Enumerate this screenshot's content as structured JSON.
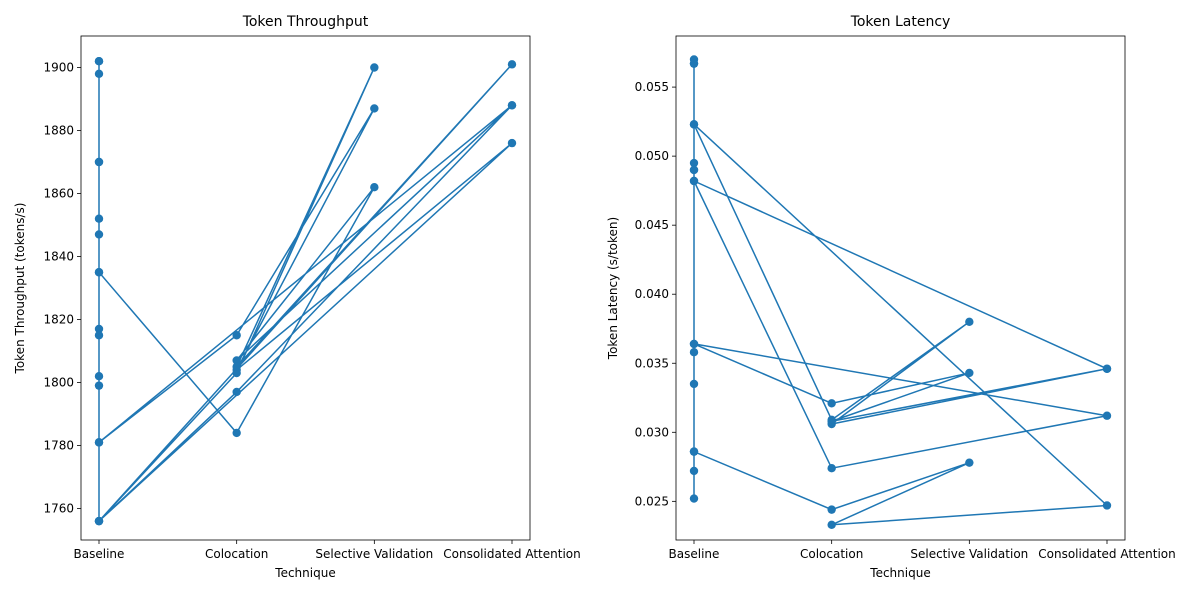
{
  "chart_data": [
    {
      "type": "line",
      "title": "Token Throughput",
      "xlabel": "Technique",
      "ylabel": "Token Throughput (tokens/s)",
      "categories": [
        "Baseline",
        "Colocation",
        "Selective Validation",
        "Consolidated Attention"
      ],
      "ylim": [
        1750,
        1910
      ],
      "yticks": [
        1760,
        1780,
        1800,
        1820,
        1840,
        1860,
        1880,
        1900
      ],
      "color": "#1f77b4",
      "x": [
        0,
        0,
        0,
        0,
        0,
        0,
        0,
        0,
        0,
        0,
        0,
        0,
        0,
        0,
        0,
        1,
        2,
        1,
        3,
        0,
        1,
        2,
        1,
        3,
        0,
        1,
        2,
        1,
        3,
        0,
        1,
        3
      ],
      "y": [
        1902,
        1898,
        1870,
        1852,
        1847,
        1835,
        1817,
        1815,
        1802,
        1799,
        1781,
        1756,
        1902,
        1870,
        1835,
        1784,
        1862,
        1807,
        1888,
        1781,
        1815,
        1887,
        1804,
        1876,
        1756,
        1803,
        1900,
        1805,
        1901,
        1756,
        1797,
        1888
      ]
    },
    {
      "type": "line",
      "title": "Token Latency",
      "xlabel": "Technique",
      "ylabel": "Token Latency (s/token)",
      "categories": [
        "Baseline",
        "Colocation",
        "Selective Validation",
        "Consolidated Attention"
      ],
      "ylim": [
        0.0222,
        0.0587
      ],
      "yticks": [
        0.025,
        0.03,
        0.035,
        0.04,
        0.045,
        0.05,
        0.055
      ],
      "ytick_labels": [
        "0.025",
        "0.030",
        "0.035",
        "0.040",
        "0.045",
        "0.050",
        "0.055"
      ],
      "color": "#1f77b4",
      "x": [
        0,
        0,
        0,
        0,
        0,
        0,
        0,
        0,
        0,
        0,
        0,
        0,
        0,
        0,
        0,
        1,
        2,
        1,
        3,
        0,
        1,
        2,
        1,
        3,
        0,
        1,
        3,
        0,
        1,
        2,
        1,
        3
      ],
      "y": [
        0.057,
        0.0567,
        0.0523,
        0.0495,
        0.049,
        0.0482,
        0.0364,
        0.0358,
        0.0335,
        0.0286,
        0.0272,
        0.0252,
        0.0567,
        0.049,
        0.0286,
        0.0244,
        0.0278,
        0.0233,
        0.0247,
        0.0523,
        0.0309,
        0.038,
        0.0306,
        0.0346,
        0.0482,
        0.0274,
        0.0312,
        0.0364,
        0.0321,
        0.0343,
        0.0308,
        0.0346
      ]
    }
  ]
}
